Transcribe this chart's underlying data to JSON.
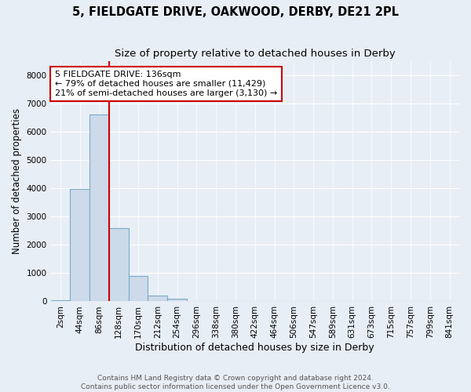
{
  "title": "5, FIELDGATE DRIVE, OAKWOOD, DERBY, DE21 2PL",
  "subtitle": "Size of property relative to detached houses in Derby",
  "xlabel": "Distribution of detached houses by size in Derby",
  "ylabel": "Number of detached properties",
  "bar_labels": [
    "2sqm",
    "44sqm",
    "86sqm",
    "128sqm",
    "170sqm",
    "212sqm",
    "254sqm",
    "296sqm",
    "338sqm",
    "380sqm",
    "422sqm",
    "464sqm",
    "506sqm",
    "547sqm",
    "589sqm",
    "631sqm",
    "673sqm",
    "715sqm",
    "757sqm",
    "799sqm",
    "841sqm"
  ],
  "bar_values": [
    30,
    3970,
    6620,
    2580,
    910,
    195,
    90,
    25,
    10,
    5,
    2,
    1,
    0,
    0,
    0,
    0,
    0,
    0,
    0,
    0,
    0
  ],
  "bar_color": "#ccdaea",
  "bar_edge_color": "#7aaac8",
  "property_line_x": 2.5,
  "property_line_color": "#cc0000",
  "annotation_line1": "5 FIELDGATE DRIVE: 136sqm",
  "annotation_line2": "← 79% of detached houses are smaller (11,429)",
  "annotation_line3": "21% of semi-detached houses are larger (3,130) →",
  "annotation_box_color": "#ffffff",
  "annotation_box_edge_color": "#cc0000",
  "ylim": [
    0,
    8500
  ],
  "yticks": [
    0,
    1000,
    2000,
    3000,
    4000,
    5000,
    6000,
    7000,
    8000
  ],
  "background_color": "#e8eef5",
  "plot_background_color": "#e8eef5",
  "footer_line1": "Contains HM Land Registry data © Crown copyright and database right 2024.",
  "footer_line2": "Contains public sector information licensed under the Open Government Licence v3.0.",
  "title_fontsize": 10.5,
  "subtitle_fontsize": 9.5,
  "ylabel_fontsize": 8.5,
  "xlabel_fontsize": 9,
  "tick_fontsize": 7.5,
  "annotation_fontsize": 8,
  "footer_fontsize": 6.5
}
